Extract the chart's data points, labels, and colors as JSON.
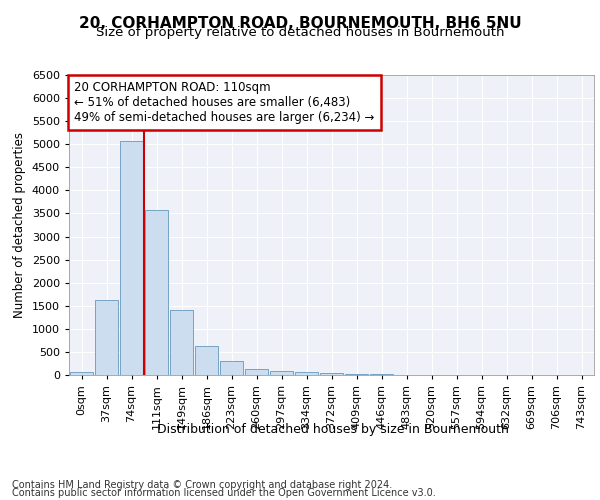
{
  "title": "20, CORHAMPTON ROAD, BOURNEMOUTH, BH6 5NU",
  "subtitle": "Size of property relative to detached houses in Bournemouth",
  "xlabel": "Distribution of detached houses by size in Bournemouth",
  "ylabel": "Number of detached properties",
  "categories": [
    "0sqm",
    "37sqm",
    "74sqm",
    "111sqm",
    "149sqm",
    "186sqm",
    "223sqm",
    "260sqm",
    "297sqm",
    "334sqm",
    "372sqm",
    "409sqm",
    "446sqm",
    "483sqm",
    "520sqm",
    "557sqm",
    "594sqm",
    "632sqm",
    "669sqm",
    "706sqm",
    "743sqm"
  ],
  "bar_values": [
    75,
    1620,
    5080,
    3580,
    1400,
    620,
    300,
    140,
    90,
    55,
    40,
    20,
    15,
    10,
    8,
    5,
    4,
    3,
    3,
    2,
    2
  ],
  "bar_color": "#ccddf0",
  "bar_edge_color": "#6699bb",
  "vline_x_index": 3,
  "vline_color": "#cc0000",
  "annotation_title": "20 CORHAMPTON ROAD: 110sqm",
  "annotation_line1": "← 51% of detached houses are smaller (6,483)",
  "annotation_line2": "49% of semi-detached houses are larger (6,234) →",
  "annotation_box_color": "#ffffff",
  "annotation_box_edgecolor": "#cc0000",
  "ylim": [
    0,
    6500
  ],
  "yticks": [
    0,
    500,
    1000,
    1500,
    2000,
    2500,
    3000,
    3500,
    4000,
    4500,
    5000,
    5500,
    6000,
    6500
  ],
  "footer_line1": "Contains HM Land Registry data © Crown copyright and database right 2024.",
  "footer_line2": "Contains public sector information licensed under the Open Government Licence v3.0.",
  "bg_color": "#eef2f8",
  "grid_color": "#ffffff",
  "title_fontsize": 11,
  "subtitle_fontsize": 9.5,
  "xlabel_fontsize": 9,
  "ylabel_fontsize": 8.5,
  "tick_fontsize": 8,
  "annotation_fontsize": 8.5,
  "footer_fontsize": 7
}
